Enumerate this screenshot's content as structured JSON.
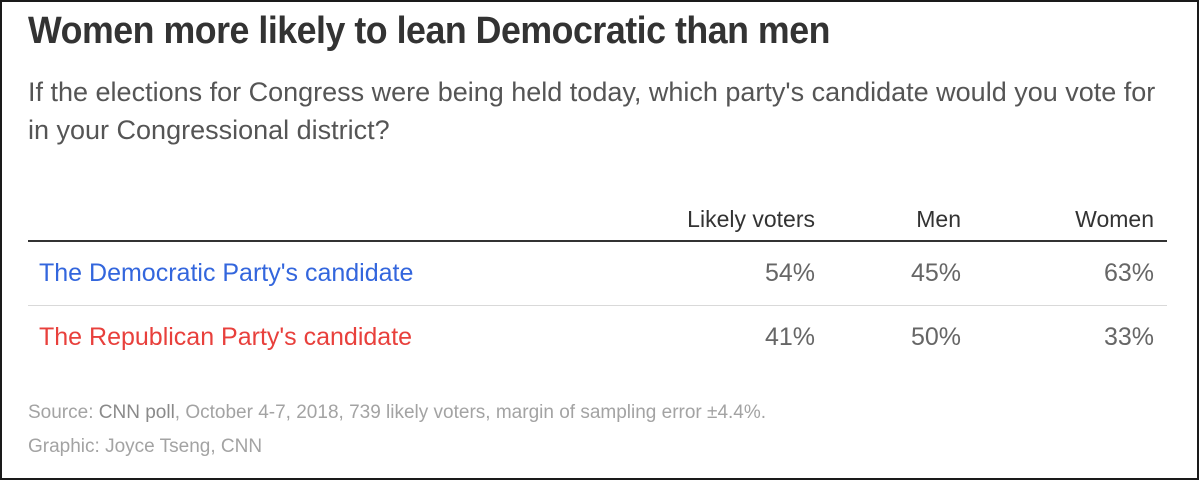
{
  "chart_data": {
    "type": "table",
    "title": "Women more likely to lean Democratic than men",
    "subtitle": "If the elections for Congress were being held today, which party's candidate would you vote for in your Congressional district?",
    "columns": [
      "Likely voters",
      "Men",
      "Women"
    ],
    "rows": [
      {
        "label": "The Democratic Party's candidate",
        "values": [
          "54%",
          "45%",
          "63%"
        ],
        "color": "#3366dd"
      },
      {
        "label": "The Republican Party's candidate",
        "values": [
          "41%",
          "50%",
          "33%"
        ],
        "color": "#e8403c"
      }
    ],
    "source_prefix": "Source: ",
    "source_name": "CNN poll",
    "source_rest": ", October 4-7, 2018, 739 likely voters, margin of sampling error ±4.4%.",
    "credit": "Graphic: Joyce Tseng, CNN"
  },
  "colors": {
    "democratic": "#3366dd",
    "republican": "#e8403c",
    "title": "#333333",
    "text": "#666666",
    "footnote": "#a3a3a3"
  }
}
